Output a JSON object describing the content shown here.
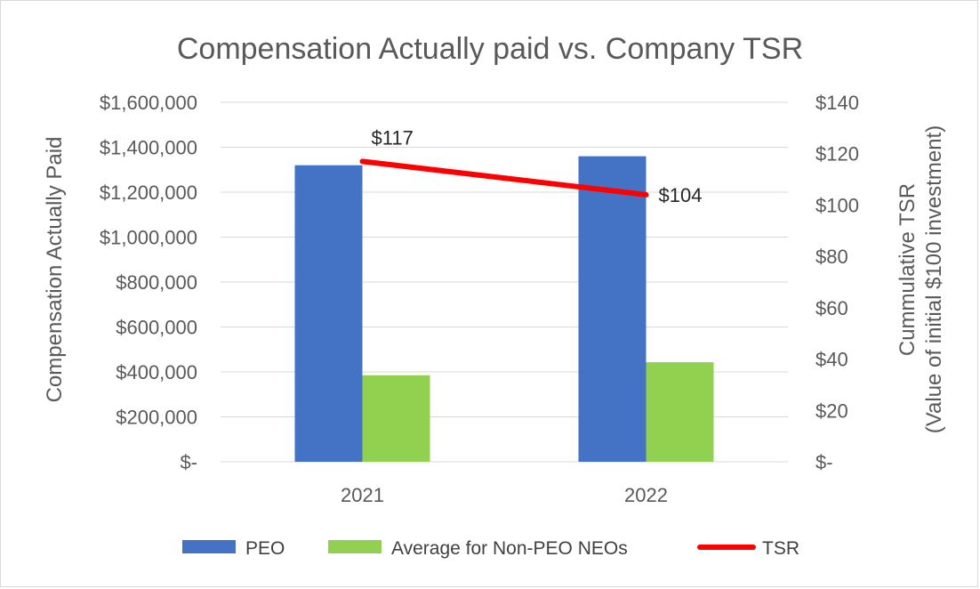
{
  "chart_data": {
    "type": "bar",
    "title": "Compensation Actually paid vs. Company TSR",
    "categories": [
      "2021",
      "2022"
    ],
    "series": [
      {
        "name": "PEO",
        "type": "bar",
        "axis": "left",
        "color": "#4472C4",
        "values": [
          1320000,
          1360000
        ]
      },
      {
        "name": "Average for Non-PEO NEOs",
        "type": "bar",
        "axis": "left",
        "color": "#92D050",
        "values": [
          385000,
          443000
        ]
      },
      {
        "name": "TSR",
        "type": "line",
        "axis": "right",
        "color": "#FF0000",
        "values": [
          117,
          104
        ],
        "data_labels": [
          "$117",
          "$104"
        ]
      }
    ],
    "y_left": {
      "label": "Compensation Actually Paid",
      "ylim": [
        0,
        1600000
      ],
      "ticks": [
        0,
        200000,
        400000,
        600000,
        800000,
        1000000,
        1200000,
        1400000,
        1600000
      ],
      "tick_labels": [
        "$-",
        "$200,000",
        "$400,000",
        "$600,000",
        "$800,000",
        "$1,000,000",
        "$1,200,000",
        "$1,400,000",
        "$1,600,000"
      ]
    },
    "y_right": {
      "label_line1": "Cummulative TSR",
      "label_line2": "(Value of initial $100 investment)",
      "ylim": [
        0,
        140
      ],
      "ticks": [
        0,
        20,
        40,
        60,
        80,
        100,
        120,
        140
      ],
      "tick_labels": [
        "$-",
        "$20",
        "$40",
        "$60",
        "$80",
        "$100",
        "$120",
        "$140"
      ]
    },
    "grid": true,
    "legend": "bottom"
  },
  "colors": {
    "gridline": "#d9d9d9",
    "text": "#595959"
  }
}
